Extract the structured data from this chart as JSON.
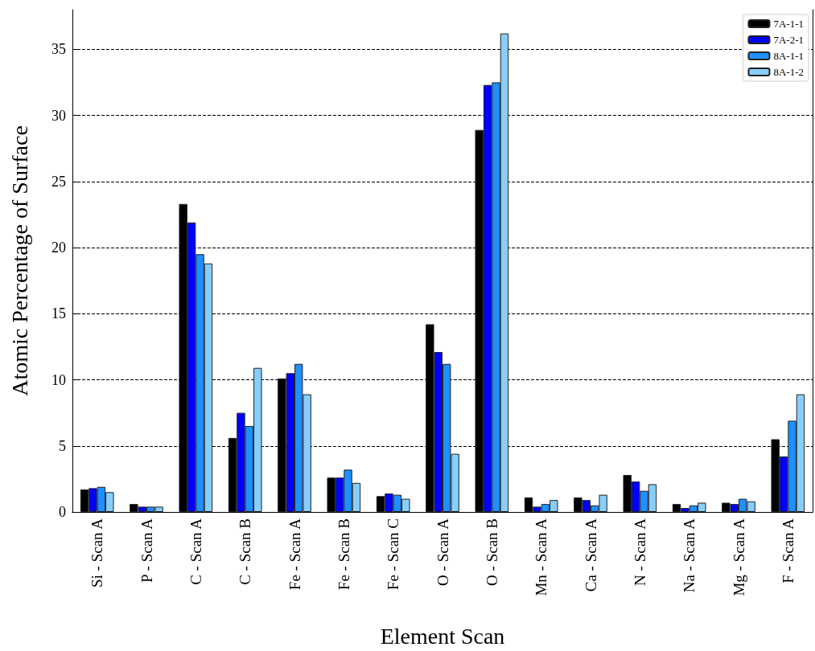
{
  "chart_data": {
    "type": "bar",
    "xlabel": "Element Scan",
    "ylabel": "Atomic Percentage of Surface",
    "categories": [
      "Si - Scan A",
      "P - Scan A",
      "C - Scan A",
      "C - Scan B",
      "Fe - Scan A",
      "Fe - Scan B",
      "Fe - Scan C",
      "O - Scan A",
      "O - Scan B",
      "Mn - Scan A",
      "Ca - Scan A",
      "N - Scan A",
      "Na - Scan A",
      "Mg - Scan A",
      "F - Scan A"
    ],
    "series": [
      {
        "name": "7A-1-1",
        "color": "#000000",
        "values": [
          1.7,
          0.6,
          23.3,
          5.6,
          10.1,
          2.6,
          1.2,
          14.2,
          28.9,
          1.1,
          1.1,
          2.8,
          0.6,
          0.7,
          5.5
        ]
      },
      {
        "name": "7A-2-1",
        "color": "#0000ff",
        "values": [
          1.8,
          0.4,
          21.9,
          7.5,
          10.5,
          2.6,
          1.4,
          12.1,
          32.3,
          0.4,
          0.9,
          2.3,
          0.3,
          0.6,
          4.2
        ]
      },
      {
        "name": "8A-1-1",
        "color": "#1e90ff",
        "values": [
          1.9,
          0.4,
          19.5,
          6.5,
          11.2,
          3.2,
          1.3,
          11.2,
          32.5,
          0.6,
          0.5,
          1.6,
          0.5,
          1.0,
          6.9
        ]
      },
      {
        "name": "8A-1-2",
        "color": "#87cefa",
        "values": [
          1.5,
          0.4,
          18.8,
          10.9,
          8.9,
          2.2,
          1.0,
          4.4,
          36.2,
          0.9,
          1.3,
          2.1,
          0.7,
          0.8,
          8.9
        ]
      }
    ],
    "ylim": [
      0,
      38
    ],
    "yticks": [
      0,
      5,
      10,
      15,
      20,
      25,
      30,
      35
    ],
    "grid": "y",
    "legend": "top right"
  }
}
